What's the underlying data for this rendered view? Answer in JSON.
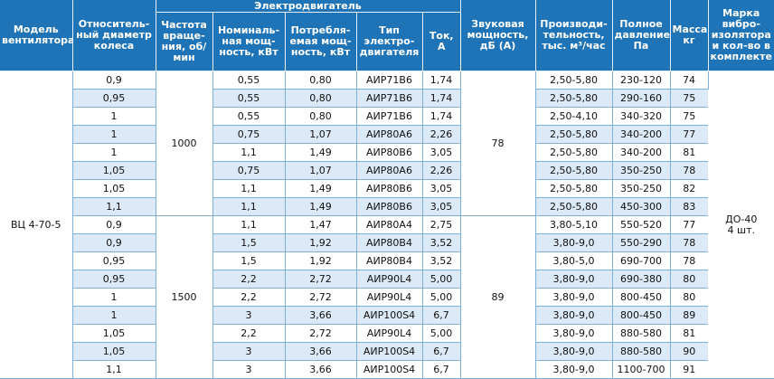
{
  "headers": {
    "model": "Модель вентилятора",
    "diameter": "Относитель-ный диаметр колеса",
    "group_motor": "Электродвигатель",
    "rpm": "Частота враще-ния, об/мин",
    "power_nom": "Номиналь-ная мощ-ность, кВт",
    "power_cons": "Потребля-емая мощ-ность, кВт",
    "motor_type": "Тип электро-двигателя",
    "current": "Ток, А",
    "sound": "Звуковая мощность, дБ (А)",
    "capacity": "Производи-тельность, тыс. м³/час",
    "pressure": "Полное давление, Па",
    "mass": "Масса, кг",
    "isolator": "Марка вибро-изолятора и кол-во в комплекте"
  },
  "merged": {
    "model": "ВЦ 4-70-5",
    "rpm_1": "1000",
    "rpm_2": "1500",
    "sound_1": "78",
    "sound_2": "89",
    "isolator_1": "ДО-40",
    "isolator_2": "4 шт."
  },
  "rows": [
    {
      "diameter": "0,9",
      "power_nom": "0,55",
      "power_cons": "0,80",
      "motor_type": "АИР71В6",
      "current": "1,74",
      "capacity": "2,50-5,80",
      "pressure": "230-120",
      "mass": "74"
    },
    {
      "diameter": "0,95",
      "power_nom": "0,55",
      "power_cons": "0,80",
      "motor_type": "АИР71В6",
      "current": "1,74",
      "capacity": "2,50-5,80",
      "pressure": "290-160",
      "mass": "75"
    },
    {
      "diameter": "1",
      "power_nom": "0,55",
      "power_cons": "0,80",
      "motor_type": "АИР71В6",
      "current": "1,74",
      "capacity": "2,50-4,10",
      "pressure": "340-320",
      "mass": "75"
    },
    {
      "diameter": "1",
      "power_nom": "0,75",
      "power_cons": "1,07",
      "motor_type": "АИР80А6",
      "current": "2,26",
      "capacity": "2,50-5,80",
      "pressure": "340-200",
      "mass": "77"
    },
    {
      "diameter": "1",
      "power_nom": "1,1",
      "power_cons": "1,49",
      "motor_type": "АИР80В6",
      "current": "3,05",
      "capacity": "2,50-5,80",
      "pressure": "340-200",
      "mass": "81"
    },
    {
      "diameter": "1,05",
      "power_nom": "0,75",
      "power_cons": "1,07",
      "motor_type": "АИР80А6",
      "current": "2,26",
      "capacity": "2,50-5,80",
      "pressure": "350-250",
      "mass": "78"
    },
    {
      "diameter": "1,05",
      "power_nom": "1,1",
      "power_cons": "1,49",
      "motor_type": "АИР80В6",
      "current": "3,05",
      "capacity": "2,50-5,80",
      "pressure": "350-250",
      "mass": "82"
    },
    {
      "diameter": "1,1",
      "power_nom": "1,1",
      "power_cons": "1,49",
      "motor_type": "АИР80В6",
      "current": "3,05",
      "capacity": "2,50-5,80",
      "pressure": "450-300",
      "mass": "83"
    },
    {
      "diameter": "0,9",
      "power_nom": "1,1",
      "power_cons": "1,47",
      "motor_type": "АИР80А4",
      "current": "2,75",
      "capacity": "3,80-5,10",
      "pressure": "550-520",
      "mass": "77"
    },
    {
      "diameter": "0,9",
      "power_nom": "1,5",
      "power_cons": "1,92",
      "motor_type": "АИР80В4",
      "current": "3,52",
      "capacity": "3,80-9,0",
      "pressure": "550-290",
      "mass": "78"
    },
    {
      "diameter": "0,95",
      "power_nom": "1,5",
      "power_cons": "1,92",
      "motor_type": "АИР80В4",
      "current": "3,52",
      "capacity": "3,80-5,0",
      "pressure": "690-700",
      "mass": "78"
    },
    {
      "diameter": "0,95",
      "power_nom": "2,2",
      "power_cons": "2,72",
      "motor_type": "АИР90L4",
      "current": "5,00",
      "capacity": "3,80-9,0",
      "pressure": "690-380",
      "mass": "80"
    },
    {
      "diameter": "1",
      "power_nom": "2,2",
      "power_cons": "2,72",
      "motor_type": "АИР90L4",
      "current": "5,00",
      "capacity": "3,80-9,0",
      "pressure": "800-450",
      "mass": "80"
    },
    {
      "diameter": "1",
      "power_nom": "3",
      "power_cons": "3,66",
      "motor_type": "АИР100S4",
      "current": "6,7",
      "capacity": "3,80-9,0",
      "pressure": "800-450",
      "mass": "89"
    },
    {
      "diameter": "1,05",
      "power_nom": "2,2",
      "power_cons": "2,72",
      "motor_type": "АИР90L4",
      "current": "5,00",
      "capacity": "3,80-9,0",
      "pressure": "880-580",
      "mass": "81"
    },
    {
      "diameter": "1,05",
      "power_nom": "3",
      "power_cons": "3,66",
      "motor_type": "АИР100S4",
      "current": "6,7",
      "capacity": "3,80-9,0",
      "pressure": "880-580",
      "mass": "90"
    },
    {
      "diameter": "1,1",
      "power_nom": "3",
      "power_cons": "3,66",
      "motor_type": "АИР100S4",
      "current": "6,7",
      "capacity": "3,80-9,0",
      "pressure": "1100-700",
      "mass": "91"
    }
  ]
}
